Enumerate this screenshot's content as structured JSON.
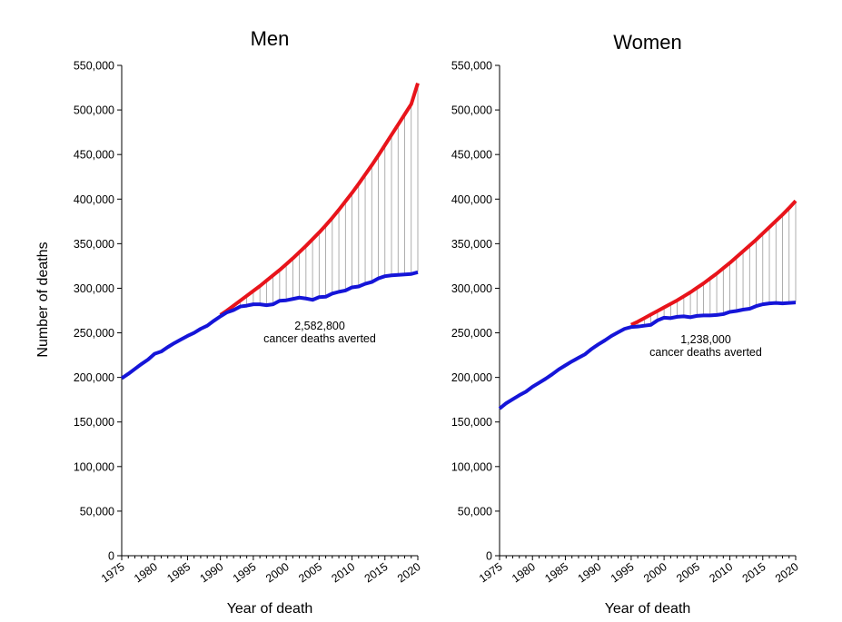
{
  "shared": {
    "ylabel": "Number of deaths",
    "ylim": [
      0,
      550000
    ],
    "yticks": [
      0,
      50000,
      100000,
      150000,
      200000,
      250000,
      300000,
      350000,
      400000,
      450000,
      500000,
      550000
    ],
    "ytick_labels": [
      "0",
      "50,000",
      "100,000",
      "150,000",
      "200,000",
      "250,000",
      "300,000",
      "350,000",
      "400,000",
      "450,000",
      "500,000",
      "550,000"
    ],
    "xticks": [
      1975,
      1980,
      1985,
      1990,
      1995,
      2000,
      2005,
      2010,
      2015,
      2020
    ],
    "xtick_labels": [
      "1975",
      "1980",
      "1985",
      "1990",
      "1995",
      "2000",
      "2005",
      "2010",
      "2015",
      "2020"
    ],
    "colors": {
      "expected": "#e8141b",
      "actual": "#1515d8",
      "gap_lines": "#9a9a9a"
    }
  },
  "chart_data": [
    {
      "type": "line",
      "title": "Men",
      "xlabel": "Year of death",
      "ylabel": "Number of deaths",
      "xlim": [
        1975,
        2020
      ],
      "ylim": [
        0,
        550000
      ],
      "annotation": {
        "value": "2,582,800",
        "text": "cancer deaths averted"
      },
      "series": [
        {
          "key": "expected",
          "x": [
            1990,
            1991,
            1992,
            1993,
            1994,
            1995,
            1996,
            1997,
            1998,
            1999,
            2000,
            2001,
            2002,
            2003,
            2004,
            2005,
            2006,
            2007,
            2008,
            2009,
            2010,
            2011,
            2012,
            2013,
            2014,
            2015,
            2016,
            2017,
            2018,
            2019,
            2020
          ],
          "values": [
            270000,
            275000,
            280500,
            286000,
            291500,
            297000,
            302500,
            308500,
            314500,
            320500,
            327000,
            333500,
            340500,
            347500,
            355000,
            362500,
            370500,
            379000,
            388000,
            397500,
            407000,
            417000,
            427500,
            438000,
            449000,
            460500,
            472000,
            483500,
            495000,
            506500,
            530000
          ]
        },
        {
          "key": "actual",
          "x": [
            1975,
            1976,
            1977,
            1978,
            1979,
            1980,
            1981,
            1982,
            1983,
            1984,
            1985,
            1986,
            1987,
            1988,
            1989,
            1990,
            1991,
            1992,
            1993,
            1994,
            1995,
            1996,
            1997,
            1998,
            1999,
            2000,
            2001,
            2002,
            2003,
            2004,
            2005,
            2006,
            2007,
            2008,
            2009,
            2010,
            2011,
            2012,
            2013,
            2014,
            2015,
            2016,
            2017,
            2018,
            2019,
            2020
          ],
          "values": [
            199000,
            204000,
            209500,
            215000,
            220000,
            226500,
            229000,
            234000,
            238500,
            242500,
            246500,
            250000,
            254500,
            258000,
            263500,
            268500,
            273000,
            275500,
            279500,
            280500,
            282000,
            282000,
            281000,
            282000,
            286000,
            286500,
            288000,
            289500,
            288500,
            287000,
            290000,
            290500,
            294000,
            296000,
            297500,
            301000,
            302000,
            305000,
            307000,
            311000,
            313500,
            314500,
            315000,
            315500,
            316000,
            318000
          ]
        }
      ]
    },
    {
      "type": "line",
      "title": "Women",
      "xlabel": "Year of death",
      "ylabel": "",
      "xlim": [
        1975,
        2020
      ],
      "ylim": [
        0,
        550000
      ],
      "annotation": {
        "value": "1,238,000",
        "text": "cancer deaths averted"
      },
      "series": [
        {
          "key": "expected",
          "x": [
            1995,
            1996,
            1997,
            1998,
            1999,
            2000,
            2001,
            2002,
            2003,
            2004,
            2005,
            2006,
            2007,
            2008,
            2009,
            2010,
            2011,
            2012,
            2013,
            2014,
            2015,
            2016,
            2017,
            2018,
            2019,
            2020
          ],
          "values": [
            259000,
            262500,
            266500,
            270500,
            274500,
            278500,
            282500,
            286500,
            291000,
            295500,
            300500,
            305500,
            311000,
            316500,
            322500,
            328500,
            335000,
            341500,
            348000,
            354500,
            361500,
            368500,
            375500,
            382500,
            390000,
            398000
          ]
        },
        {
          "key": "actual",
          "x": [
            1975,
            1976,
            1977,
            1978,
            1979,
            1980,
            1981,
            1982,
            1983,
            1984,
            1985,
            1986,
            1987,
            1988,
            1989,
            1990,
            1991,
            1992,
            1993,
            1994,
            1995,
            1996,
            1997,
            1998,
            1999,
            2000,
            2001,
            2002,
            2003,
            2004,
            2005,
            2006,
            2007,
            2008,
            2009,
            2010,
            2011,
            2012,
            2013,
            2014,
            2015,
            2016,
            2017,
            2018,
            2019,
            2020
          ],
          "values": [
            165000,
            171000,
            175500,
            180000,
            184000,
            189500,
            194000,
            198500,
            203500,
            209000,
            213500,
            218000,
            222000,
            226000,
            232000,
            237000,
            241500,
            246500,
            250500,
            254500,
            256500,
            257000,
            258000,
            259000,
            264000,
            267000,
            266500,
            268000,
            268500,
            267500,
            269000,
            269500,
            269500,
            270000,
            271000,
            273500,
            274500,
            276000,
            277000,
            280000,
            282000,
            283000,
            283500,
            283000,
            283500,
            284000
          ]
        }
      ]
    }
  ]
}
